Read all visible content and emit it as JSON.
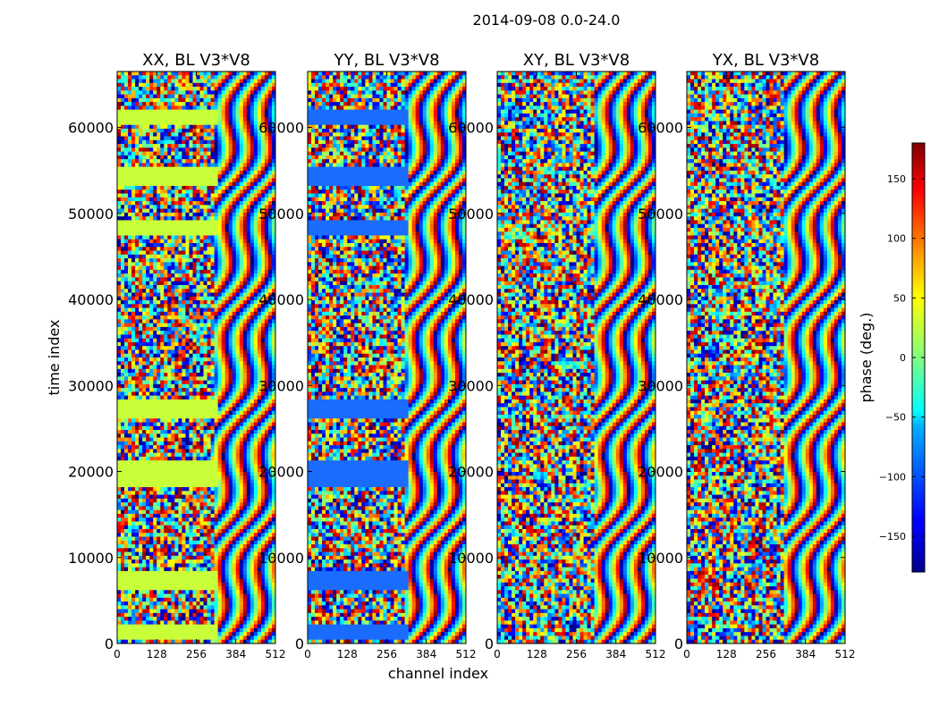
{
  "chart_data": {
    "type": "heatmap",
    "suptitle": "2014-09-08 0.0-24.0",
    "xlabel": "channel index",
    "ylabel": "time index",
    "xlim": [
      0,
      512
    ],
    "ylim": [
      0,
      66500
    ],
    "xticks": [
      0,
      128,
      256,
      384,
      512
    ],
    "xtick_labels": [
      "0",
      "128",
      "256",
      "384",
      "512"
    ],
    "yticks": [
      0,
      10000,
      20000,
      30000,
      40000,
      50000,
      60000
    ],
    "ytick_labels": [
      "0",
      "10000",
      "20000",
      "30000",
      "40000",
      "50000",
      "60000"
    ],
    "panels": [
      {
        "title": "XX, BL V3*V8",
        "band_color": "#c8ff38"
      },
      {
        "title": "YY, BL V3*V8",
        "band_color": "#1a6cff"
      },
      {
        "title": "XY, BL V3*V8",
        "band_color": null
      },
      {
        "title": "YX, BL V3*V8",
        "band_color": null
      }
    ],
    "colorbar": {
      "label": "phase (deg.)",
      "vmin": -180,
      "vmax": 180,
      "ticks": [
        -150,
        -100,
        -50,
        0,
        50,
        100,
        150
      ],
      "tick_labels": [
        "−150",
        "−100",
        "−50",
        "0",
        "50",
        "100",
        "150"
      ],
      "colormap": "jet"
    }
  }
}
